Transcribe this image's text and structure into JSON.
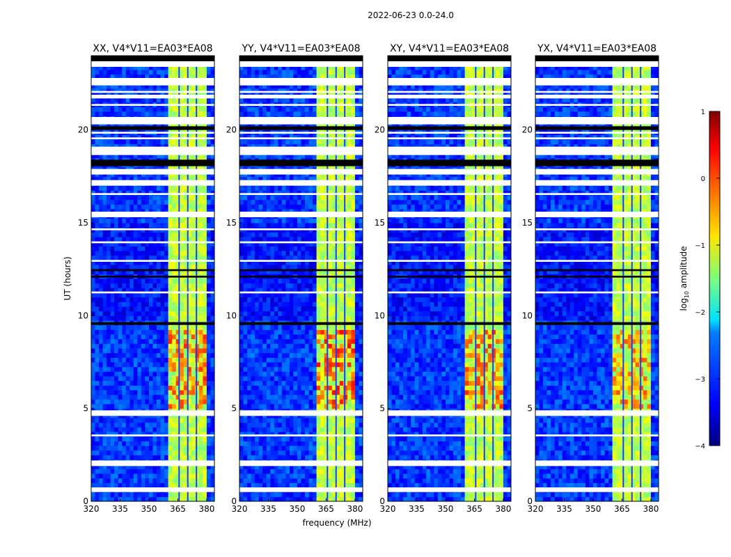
{
  "chart_data": {
    "type": "heatmap",
    "suptitle": "2022-06-23 0.0-24.0",
    "xlabel": "frequency (MHz)",
    "ylabel": "UT (hours)",
    "xlim": [
      320,
      384
    ],
    "ylim": [
      0,
      24
    ],
    "xticks": [
      320,
      335,
      350,
      365,
      380
    ],
    "yticks": [
      0,
      5,
      10,
      15,
      20
    ],
    "panels": [
      {
        "title": "XX, V4*V11=EA03*EA08",
        "hot_level": 0.2
      },
      {
        "title": "YY, V4*V11=EA03*EA08",
        "hot_level": 0.35
      },
      {
        "title": "XY, V4*V11=EA03*EA08",
        "hot_level": 0.2
      },
      {
        "title": "YX, V4*V11=EA03*EA08",
        "hot_level": 0.0
      }
    ],
    "background_level_log10": -3.1,
    "band_mhz": [
      360.5,
      380.5
    ],
    "band_level_log10": -1.2,
    "band_channel_gaps_mhz": [
      365.3,
      369.8,
      374.3
    ],
    "hot_hours": [
      5.0,
      9.2
    ],
    "flagged_hours_white": [
      [
        23.4,
        23.7
      ],
      [
        22.4,
        22.8
      ],
      [
        22.0,
        22.1
      ],
      [
        21.7,
        21.9
      ],
      [
        21.3,
        21.4
      ],
      [
        20.3,
        20.7
      ],
      [
        19.8,
        19.9
      ],
      [
        19.5,
        19.6
      ],
      [
        18.65,
        19.1
      ],
      [
        17.6,
        17.9
      ],
      [
        17.0,
        17.3
      ],
      [
        16.5,
        16.6
      ],
      [
        15.3,
        15.6
      ],
      [
        14.6,
        14.7
      ],
      [
        13.9,
        14.0
      ],
      [
        12.9,
        13.0
      ],
      [
        11.2,
        11.3
      ],
      [
        4.6,
        4.9
      ],
      [
        3.5,
        3.6
      ],
      [
        1.9,
        2.2
      ],
      [
        0.5,
        0.75
      ]
    ],
    "flagged_hours_black": [
      [
        23.7,
        24.0
      ],
      [
        20.0,
        20.2
      ],
      [
        18.05,
        18.4
      ],
      [
        12.4,
        12.5
      ],
      [
        12.05,
        12.15
      ],
      [
        9.5,
        9.65
      ]
    ],
    "colorbar": {
      "label": "log10 amplitude",
      "label_base": "log",
      "label_sub": "10",
      "label_rest": " amplitude",
      "range": [
        -4,
        1
      ],
      "ticks": [
        "1",
        "0",
        "−1",
        "−2",
        "−3",
        "−4"
      ],
      "tick_values": [
        1,
        0,
        -1,
        -2,
        -3,
        -4
      ]
    }
  }
}
